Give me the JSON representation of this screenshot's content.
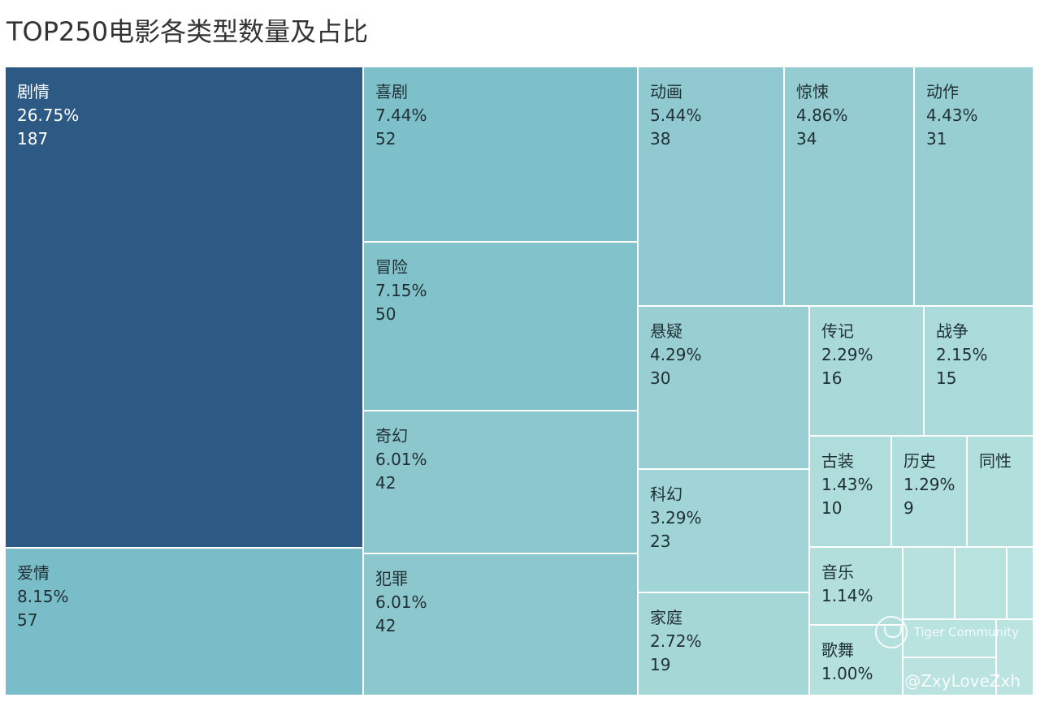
{
  "chart_data": {
    "type": "treemap",
    "title": "TOP250电影各类型数量及占比",
    "items": [
      {
        "name": "剧情",
        "percent": "26.75%",
        "count": 187,
        "color": "#2d5985"
      },
      {
        "name": "爱情",
        "percent": "8.15%",
        "count": 57,
        "color": "#79bdc9"
      },
      {
        "name": "喜剧",
        "percent": "7.44%",
        "count": 52,
        "color": "#7ec0ca"
      },
      {
        "name": "冒险",
        "percent": "7.15%",
        "count": 50,
        "color": "#81c2cb"
      },
      {
        "name": "奇幻",
        "percent": "6.01%",
        "count": 42,
        "color": "#8bc7cd"
      },
      {
        "name": "犯罪",
        "percent": "6.01%",
        "count": 42,
        "color": "#8bc7cd"
      },
      {
        "name": "动画",
        "percent": "5.44%",
        "count": 38,
        "color": "#90cad0"
      },
      {
        "name": "惊悚",
        "percent": "4.86%",
        "count": 34,
        "color": "#94ccd1"
      },
      {
        "name": "动作",
        "percent": "4.43%",
        "count": 31,
        "color": "#97ced2"
      },
      {
        "name": "悬疑",
        "percent": "4.29%",
        "count": 30,
        "color": "#99cfd3"
      },
      {
        "name": "科幻",
        "percent": "3.29%",
        "count": 23,
        "color": "#a0d4d6"
      },
      {
        "name": "家庭",
        "percent": "2.72%",
        "count": 19,
        "color": "#a5d7d7"
      },
      {
        "name": "传记",
        "percent": "2.29%",
        "count": 16,
        "color": "#a9dad9"
      },
      {
        "name": "战争",
        "percent": "2.15%",
        "count": 15,
        "color": "#aadbda"
      },
      {
        "name": "古装",
        "percent": "1.43%",
        "count": 10,
        "color": "#aedddb"
      },
      {
        "name": "历史",
        "percent": "1.29%",
        "count": 9,
        "color": "#b0dedc"
      },
      {
        "name": "同性",
        "percent": "",
        "count": null,
        "color": "#b1dfdc"
      },
      {
        "name": "音乐",
        "percent": "1.14%",
        "count": null,
        "color": "#b2dfdc"
      },
      {
        "name": "歌舞",
        "percent": "1.00%",
        "count": null,
        "color": "#b4e0dd"
      },
      {
        "name": "",
        "percent": "",
        "count": null,
        "color": "#b6e1de"
      },
      {
        "name": "",
        "percent": "",
        "count": null,
        "color": "#b7e2de"
      },
      {
        "name": "",
        "percent": "",
        "count": null,
        "color": "#b8e2df"
      },
      {
        "name": "",
        "percent": "",
        "count": null,
        "color": "#b9e3df"
      },
      {
        "name": "",
        "percent": "",
        "count": null,
        "color": "#bae3e0"
      },
      {
        "name": "",
        "percent": "",
        "count": null,
        "color": "#bbe4e0"
      }
    ]
  },
  "watermark": {
    "brand": "Tiger Community",
    "handle": "@ZxyLoveZxh"
  }
}
